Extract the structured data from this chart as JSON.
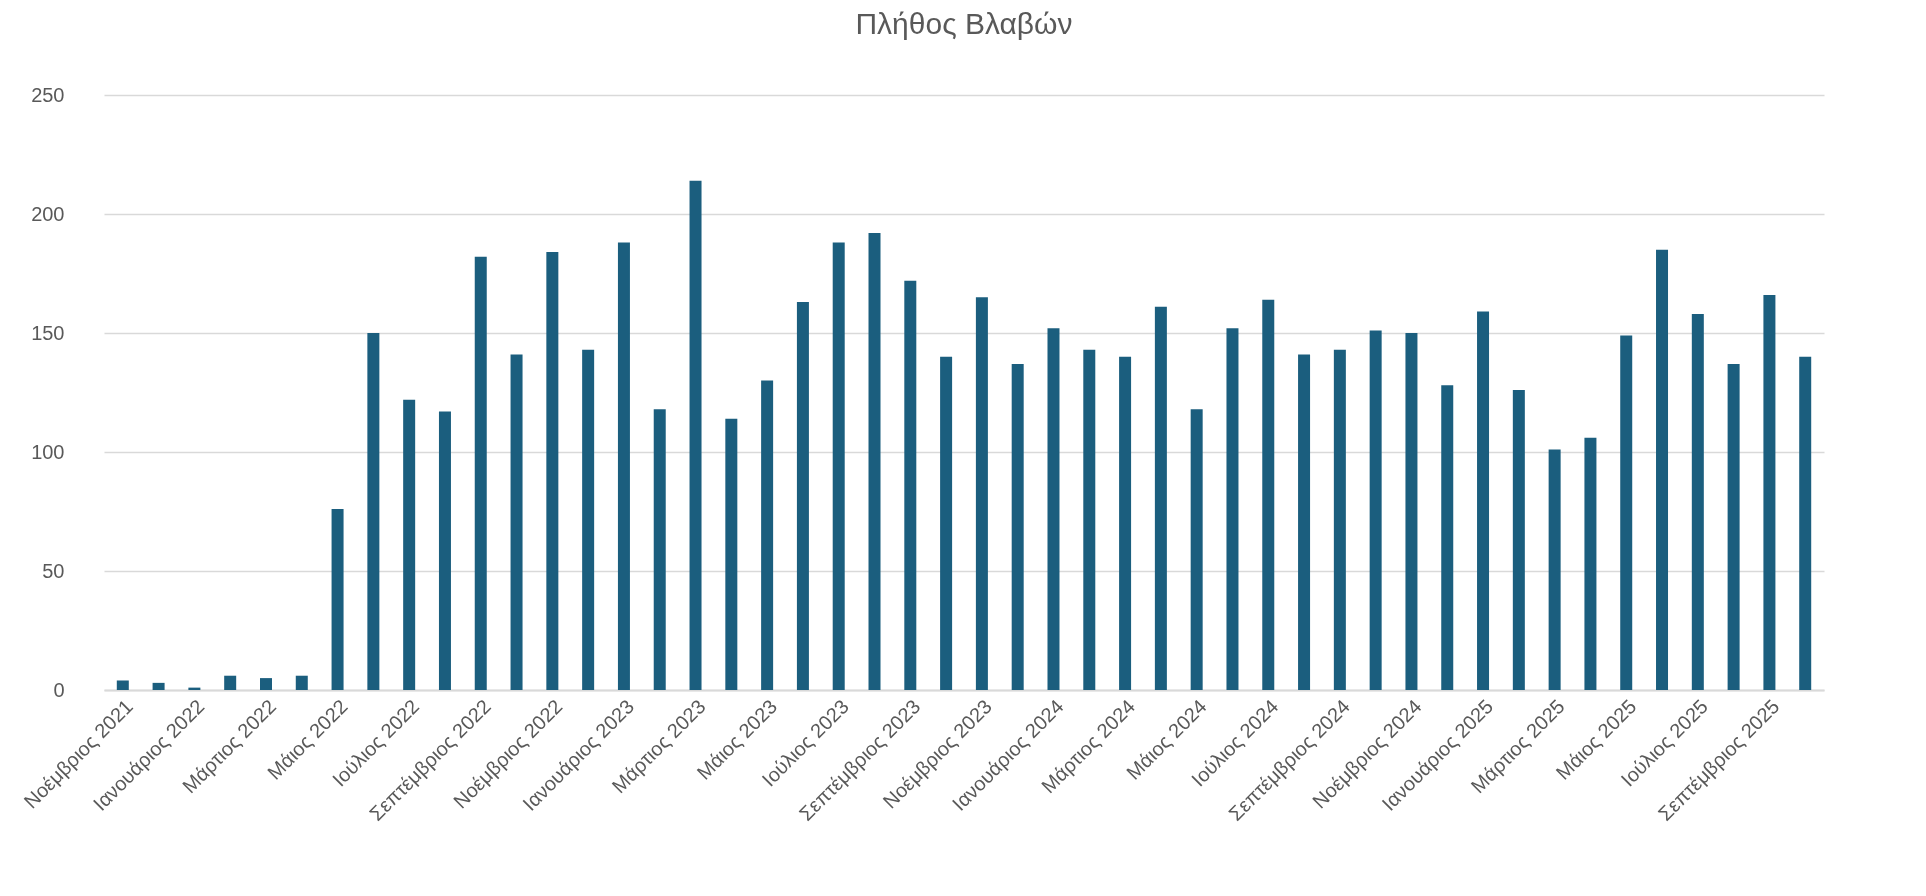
{
  "chart_data": {
    "type": "bar",
    "title": "Πλήθος Βλαβών",
    "categories": [
      "Νοέμβριος 2021",
      null,
      "Ιανουάριος 2022",
      null,
      "Μάρτιος 2022",
      null,
      "Μάιος 2022",
      null,
      "Ιούλιος 2022",
      null,
      "Σεπτέμβριος 2022",
      null,
      "Νοέμβριος 2022",
      null,
      "Ιανουάριος 2023",
      null,
      "Μάρτιος 2023",
      null,
      "Μάιος 2023",
      null,
      "Ιούλιος 2023",
      null,
      "Σεπτέμβριος 2023",
      null,
      "Νοέμβριος 2023",
      null,
      "Ιανουάριος 2024",
      null,
      "Μάρτιος 2024",
      null,
      "Μάιος 2024",
      null,
      "Ιούλιος 2024",
      null,
      "Σεπτέμβριος 2024",
      null,
      "Νοέμβριος 2024",
      null,
      "Ιανουάριος 2025",
      null,
      "Μάρτιος 2025",
      null,
      "Μάιος 2025",
      null,
      "Ιούλιος 2025",
      null,
      "Σεπτέμβριος 2025",
      null
    ],
    "values": [
      4,
      3,
      1,
      6,
      5,
      6,
      76,
      150,
      122,
      117,
      182,
      141,
      184,
      143,
      188,
      118,
      214,
      114,
      130,
      163,
      188,
      192,
      172,
      140,
      165,
      137,
      152,
      143,
      140,
      161,
      118,
      152,
      164,
      141,
      143,
      151,
      150,
      128,
      159,
      126,
      101,
      106,
      149,
      185,
      158,
      137,
      166,
      140
    ],
    "color": "#1b5e7e",
    "ylim": [
      0,
      250
    ],
    "yticks": [
      0,
      50,
      100,
      150,
      200,
      250
    ],
    "grid": "y"
  }
}
